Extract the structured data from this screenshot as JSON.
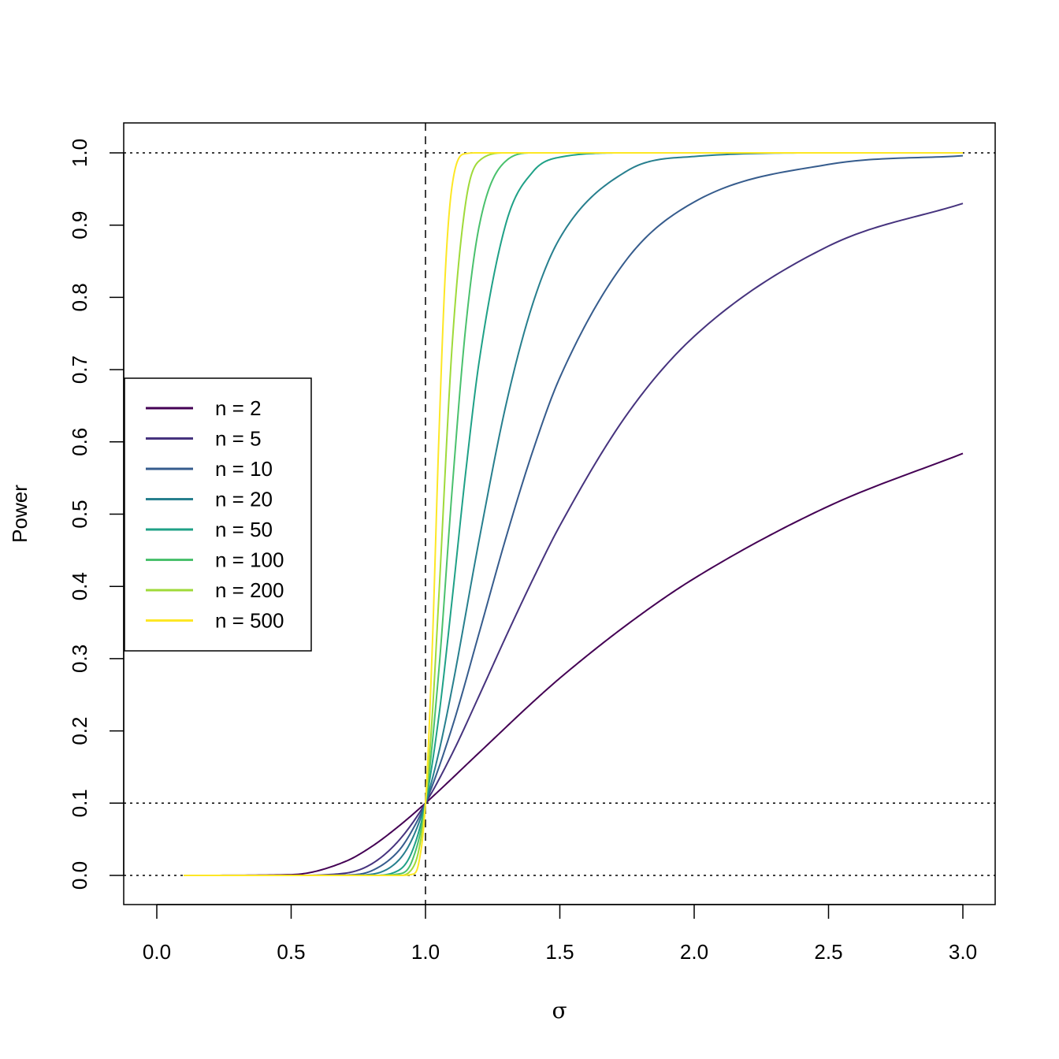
{
  "chart_data": {
    "type": "line",
    "title": "",
    "xlabel": "σ",
    "ylabel": "Power",
    "xlim": [
      -0.12,
      3.12
    ],
    "ylim": [
      -0.04,
      1.04
    ],
    "x_ticks": [
      "0.0",
      "0.5",
      "1.0",
      "1.5",
      "2.0",
      "2.5",
      "3.0"
    ],
    "y_ticks": [
      "0.0",
      "0.1",
      "0.2",
      "0.3",
      "0.4",
      "0.5",
      "0.6",
      "0.7",
      "0.8",
      "0.9",
      "1.0"
    ],
    "grid": false,
    "legend_placement": "left",
    "reference_lines": {
      "horizontal_dotted": [
        0,
        0.1,
        1.0
      ],
      "vertical_dashed": [
        1.0
      ]
    },
    "series": [
      {
        "name": "n = 2",
        "color": "#440154",
        "x": [
          0.1,
          0.5,
          0.7,
          0.8,
          0.9,
          1.0,
          1.2,
          1.4,
          1.5,
          1.75,
          2.0,
          2.5,
          3.0
        ],
        "y": [
          0,
          0.001,
          0.019,
          0.04,
          0.068,
          0.1,
          0.17,
          0.24,
          0.273,
          0.347,
          0.411,
          0.511,
          0.584
        ]
      },
      {
        "name": "n = 5",
        "color": "#46337E",
        "x": [
          0.1,
          0.5,
          0.7,
          0.8,
          0.9,
          1.0,
          1.1,
          1.2,
          1.3,
          1.4,
          1.5,
          1.75,
          2.0,
          2.5,
          3.0
        ],
        "y": [
          0,
          0,
          0.003,
          0.016,
          0.048,
          0.1,
          0.169,
          0.249,
          0.331,
          0.41,
          0.484,
          0.638,
          0.746,
          0.871,
          0.93
        ]
      },
      {
        "name": "n = 10",
        "color": "#365C8D",
        "x": [
          0.1,
          0.5,
          0.7,
          0.8,
          0.9,
          0.95,
          1.0,
          1.1,
          1.2,
          1.3,
          1.4,
          1.5,
          1.75,
          2.0,
          2.5,
          3.0
        ],
        "y": [
          0,
          0,
          0.0005,
          0.0065,
          0.034,
          0.062,
          0.1,
          0.206,
          0.336,
          0.468,
          0.588,
          0.689,
          0.853,
          0.932,
          0.984,
          0.996
        ]
      },
      {
        "name": "n = 20",
        "color": "#277F8E",
        "x": [
          0.1,
          0.7,
          0.8,
          0.9,
          0.95,
          1.0,
          1.05,
          1.1,
          1.2,
          1.3,
          1.4,
          1.5,
          1.75,
          2.0,
          2.5,
          3.0
        ],
        "y": [
          0,
          0,
          0.0016,
          0.021,
          0.05,
          0.1,
          0.171,
          0.261,
          0.465,
          0.652,
          0.792,
          0.882,
          0.975,
          0.995,
          1,
          1
        ]
      },
      {
        "name": "n = 50",
        "color": "#1FA187",
        "x": [
          0.1,
          0.8,
          0.9,
          0.95,
          1.0,
          1.05,
          1.1,
          1.15,
          1.2,
          1.3,
          1.4,
          1.5,
          1.75,
          3.0
        ],
        "y": [
          0,
          0,
          0.007,
          0.033,
          0.1,
          0.221,
          0.385,
          0.559,
          0.712,
          0.903,
          0.974,
          0.994,
          1,
          1
        ]
      },
      {
        "name": "n = 100",
        "color": "#4AC16D",
        "x": [
          0.1,
          0.8,
          0.9,
          0.95,
          1.0,
          1.05,
          1.1,
          1.15,
          1.2,
          1.3,
          1.4,
          3.0
        ],
        "y": [
          0,
          0,
          0.002,
          0.02,
          0.1,
          0.285,
          0.538,
          0.76,
          0.899,
          0.989,
          1,
          1
        ]
      },
      {
        "name": "n = 200",
        "color": "#9FDA3A",
        "x": [
          0.1,
          0.9,
          0.95,
          0.975,
          1.0,
          1.025,
          1.05,
          1.1,
          1.15,
          1.2,
          1.3,
          3.0
        ],
        "y": [
          0,
          0,
          0.009,
          0.035,
          0.1,
          0.22,
          0.388,
          0.738,
          0.932,
          0.989,
          1,
          1
        ]
      },
      {
        "name": "n = 500",
        "color": "#FDE725",
        "x": [
          0.1,
          0.9,
          0.95,
          0.975,
          1.0,
          1.025,
          1.05,
          1.075,
          1.1,
          1.15,
          1.2,
          3.0
        ],
        "y": [
          0,
          0,
          0.0015,
          0.0175,
          0.1,
          0.313,
          0.608,
          0.843,
          0.957,
          0.999,
          1,
          1
        ]
      }
    ]
  }
}
